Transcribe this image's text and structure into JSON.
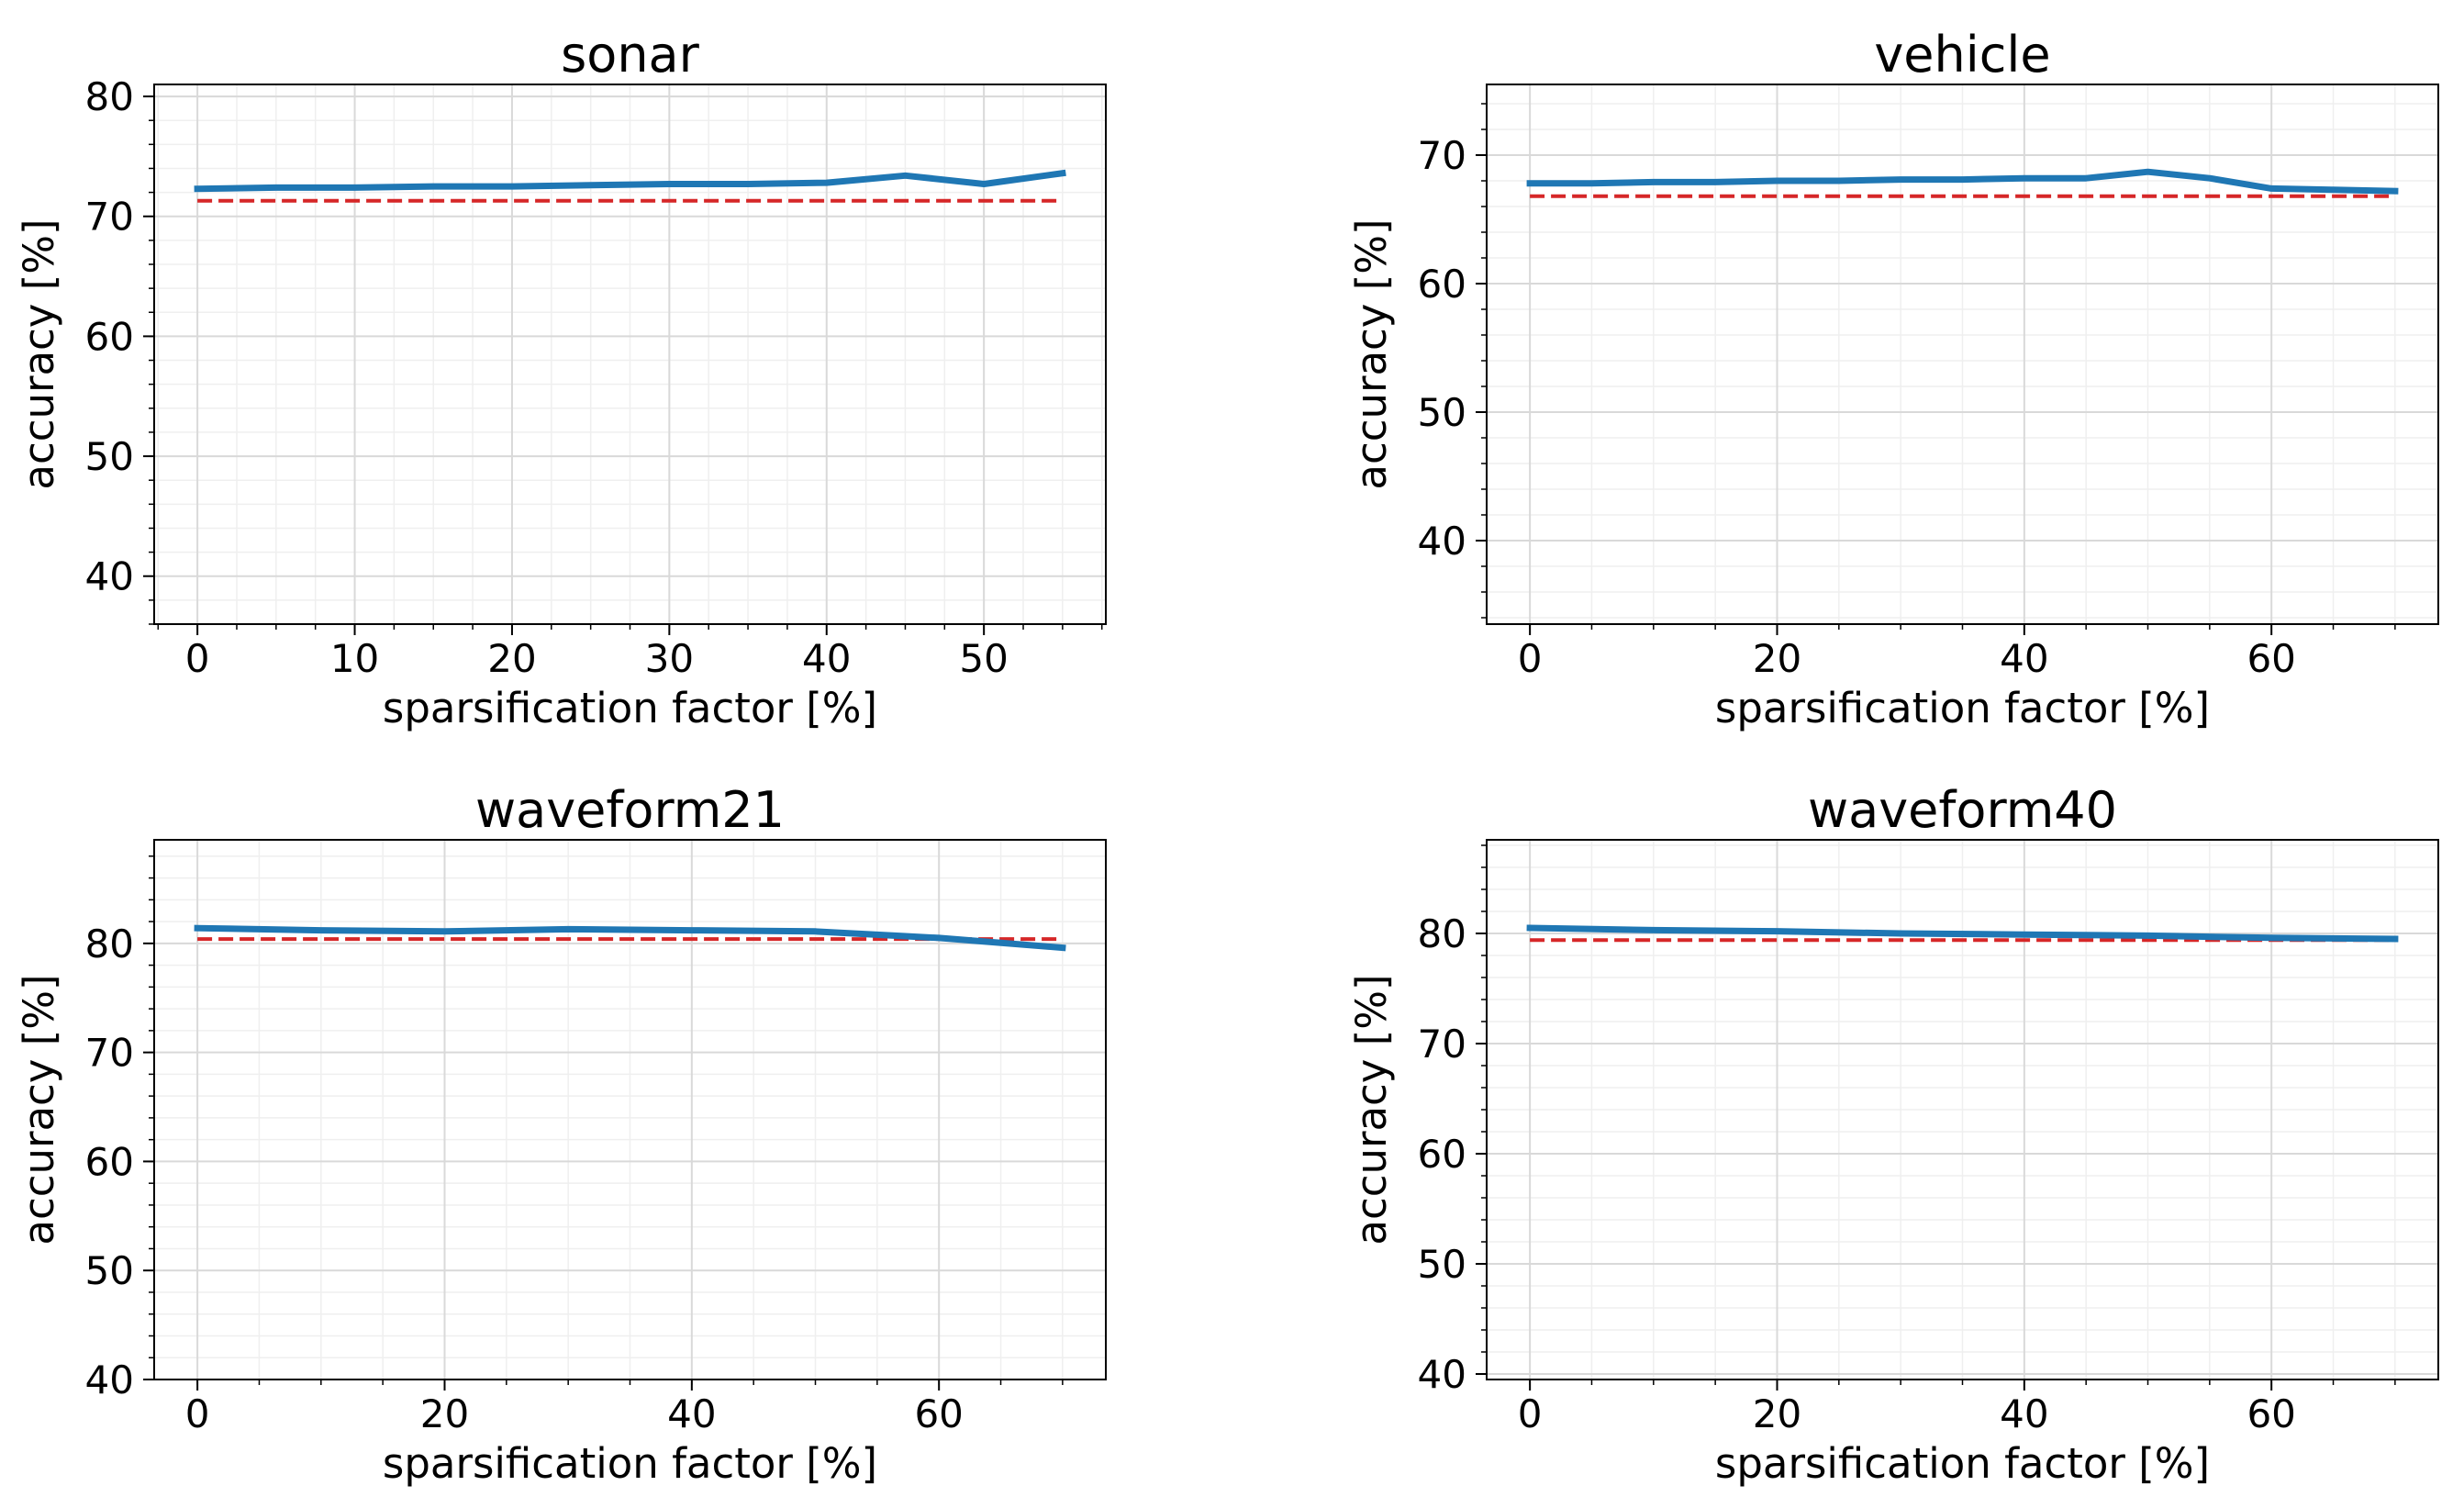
{
  "colors": {
    "series_line": "#1f77b4",
    "baseline": "#d62728",
    "grid_major": "#d9d9d9",
    "grid_minor": "#efefef",
    "axes": "#000000"
  },
  "chart_data": [
    {
      "type": "line",
      "title": "sonar",
      "xlabel": "sparsification factor [%]",
      "ylabel": "accuracy [%]",
      "xlim": [
        -2.75,
        57.75
      ],
      "ylim": [
        36,
        81
      ],
      "xticks": [
        0,
        10,
        20,
        30,
        40,
        50
      ],
      "xtick_labels": [
        "0",
        "10",
        "20",
        "30",
        "40",
        "50"
      ],
      "yticks": [
        40,
        50,
        60,
        70,
        80
      ],
      "ytick_labels": [
        "40",
        "50",
        "60",
        "70",
        "80"
      ],
      "x_minor_step": 2.5,
      "y_minor_step": 2,
      "grid": true,
      "series": [
        {
          "name": "accuracy",
          "style": "solid",
          "x": [
            0,
            5,
            10,
            15,
            20,
            25,
            30,
            35,
            40,
            45,
            50,
            55
          ],
          "y": [
            72.3,
            72.4,
            72.4,
            72.5,
            72.5,
            72.6,
            72.7,
            72.7,
            72.8,
            73.4,
            72.7,
            73.6
          ]
        },
        {
          "name": "baseline",
          "style": "dashed",
          "x": [
            0,
            55
          ],
          "y": [
            71.3,
            71.3
          ]
        }
      ]
    },
    {
      "type": "line",
      "title": "vehicle",
      "xlabel": "sparsification factor [%]",
      "ylabel": "accuracy [%]",
      "xlim": [
        -3.5,
        73.5
      ],
      "ylim": [
        33.5,
        75.5
      ],
      "xticks": [
        0,
        20,
        40,
        60
      ],
      "xtick_labels": [
        "0",
        "20",
        "40",
        "60"
      ],
      "yticks": [
        40,
        50,
        60,
        70
      ],
      "ytick_labels": [
        "40",
        "50",
        "60",
        "70"
      ],
      "x_minor_step": 5,
      "y_minor_step": 2,
      "grid": true,
      "series": [
        {
          "name": "accuracy",
          "style": "solid",
          "x": [
            0,
            5,
            10,
            15,
            20,
            25,
            30,
            35,
            40,
            45,
            50,
            55,
            60,
            65,
            70
          ],
          "y": [
            67.8,
            67.8,
            67.9,
            67.9,
            68.0,
            68.0,
            68.1,
            68.1,
            68.2,
            68.2,
            68.7,
            68.2,
            67.4,
            67.3,
            67.2
          ]
        },
        {
          "name": "baseline",
          "style": "dashed",
          "x": [
            0,
            70
          ],
          "y": [
            66.8,
            66.8
          ]
        }
      ]
    },
    {
      "type": "line",
      "title": "waveform21",
      "xlabel": "sparsification factor [%]",
      "ylabel": "accuracy [%]",
      "xlim": [
        -3.5,
        73.5
      ],
      "ylim": [
        40,
        89.5
      ],
      "xticks": [
        0,
        20,
        40,
        60
      ],
      "xtick_labels": [
        "0",
        "20",
        "40",
        "60"
      ],
      "yticks": [
        40,
        50,
        60,
        70,
        80
      ],
      "ytick_labels": [
        "40",
        "50",
        "60",
        "70",
        "80"
      ],
      "x_minor_step": 5,
      "y_minor_step": 2,
      "grid": true,
      "series": [
        {
          "name": "accuracy",
          "style": "solid",
          "x": [
            0,
            10,
            20,
            30,
            40,
            50,
            60,
            70
          ],
          "y": [
            81.4,
            81.2,
            81.1,
            81.3,
            81.2,
            81.1,
            80.5,
            79.6
          ]
        },
        {
          "name": "baseline",
          "style": "dashed",
          "x": [
            0,
            70
          ],
          "y": [
            80.4,
            80.4
          ]
        }
      ]
    },
    {
      "type": "line",
      "title": "waveform40",
      "xlabel": "sparsification factor [%]",
      "ylabel": "accuracy [%]",
      "xlim": [
        -3.5,
        73.5
      ],
      "ylim": [
        39.5,
        88.5
      ],
      "xticks": [
        0,
        20,
        40,
        60
      ],
      "xtick_labels": [
        "0",
        "20",
        "40",
        "60"
      ],
      "yticks": [
        40,
        50,
        60,
        70,
        80
      ],
      "ytick_labels": [
        "40",
        "50",
        "60",
        "70",
        "80"
      ],
      "x_minor_step": 5,
      "y_minor_step": 2,
      "grid": true,
      "series": [
        {
          "name": "accuracy",
          "style": "solid",
          "x": [
            0,
            10,
            20,
            30,
            40,
            50,
            60,
            70
          ],
          "y": [
            80.5,
            80.3,
            80.2,
            80.0,
            79.9,
            79.8,
            79.6,
            79.5
          ]
        },
        {
          "name": "baseline",
          "style": "dashed",
          "x": [
            0,
            70
          ],
          "y": [
            79.4,
            79.4
          ]
        }
      ]
    }
  ]
}
